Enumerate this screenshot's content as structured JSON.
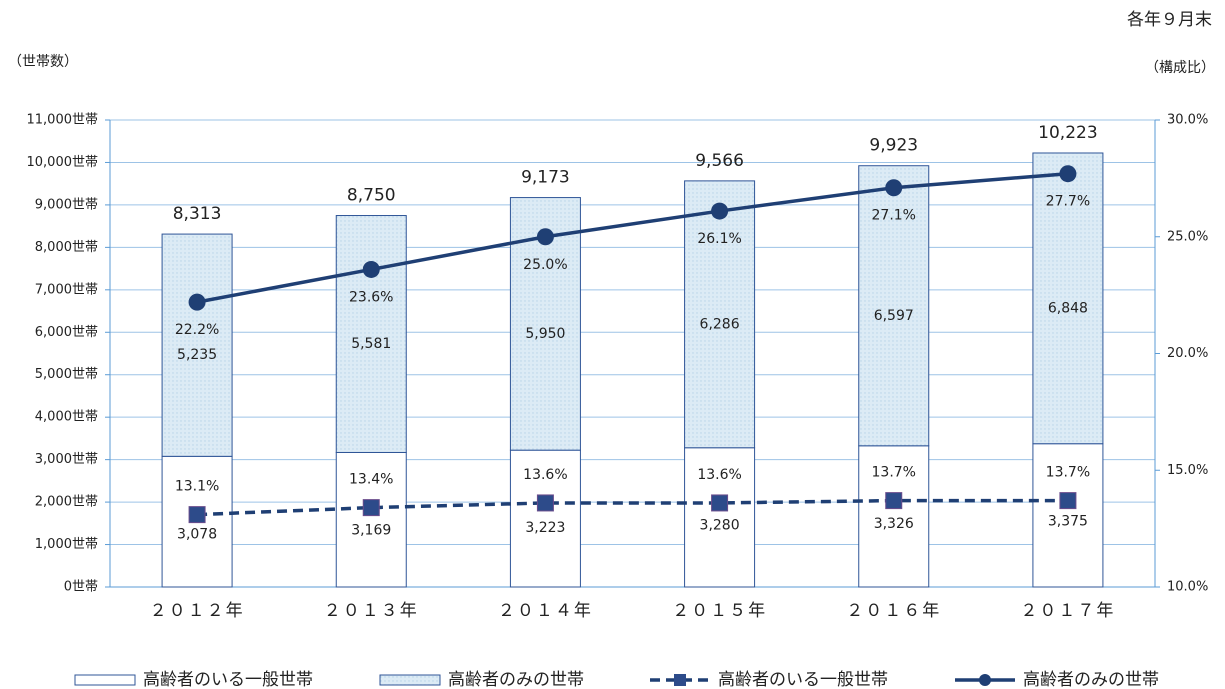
{
  "chart_data": {
    "type": "bar",
    "stacked": true,
    "note": "各年９月末",
    "y_label": "（世帯数）",
    "y2_label": "（構成比）",
    "categories": [
      "２０１２年",
      "２０１３年",
      "２０１４年",
      "２０１５年",
      "２０１６年",
      "２０１７年"
    ],
    "series": [
      {
        "name": "高齢者のいる一般世帯",
        "type": "bar",
        "color": "#ffffff",
        "edge": "#2f5597",
        "values": [
          3078,
          3169,
          3223,
          3280,
          3326,
          3375
        ],
        "value_labels": [
          "3,078",
          "3,169",
          "3,223",
          "3,280",
          "3,326",
          "3,375"
        ]
      },
      {
        "name": "高齢者のみの世帯",
        "type": "bar",
        "color": "#dcebf5",
        "edge": "#2f5597",
        "values": [
          5235,
          5581,
          5950,
          6286,
          6597,
          6848
        ],
        "value_labels": [
          "5,235",
          "5,581",
          "5,950",
          "6,286",
          "6,597",
          "6,848"
        ]
      },
      {
        "name": "高齢者のいる一般世帯",
        "type": "line",
        "axis": "y2",
        "color": "#1f3f74",
        "dashed": true,
        "marker": "square",
        "marker_color": "#2d4b8a",
        "values": [
          13.1,
          13.4,
          13.6,
          13.6,
          13.7,
          13.7
        ],
        "value_labels": [
          "13.1%",
          "13.4%",
          "13.6%",
          "13.6%",
          "13.7%",
          "13.7%"
        ]
      },
      {
        "name": "高齢者のみの世帯",
        "type": "line",
        "axis": "y2",
        "color": "#1f3f74",
        "dashed": false,
        "marker": "circle",
        "marker_color": "#1f3f74",
        "values": [
          22.2,
          23.6,
          25.0,
          26.1,
          27.1,
          27.7
        ],
        "value_labels": [
          "22.2%",
          "23.6%",
          "25.0%",
          "26.1%",
          "27.1%",
          "27.7%"
        ]
      }
    ],
    "totals": {
      "values": [
        8313,
        8750,
        9173,
        9566,
        9923,
        10223
      ],
      "value_labels": [
        "8,313",
        "8,750",
        "9,173",
        "9,566",
        "9,923",
        "10,223"
      ]
    },
    "ylim": [
      0,
      11000
    ],
    "yticks": [
      {
        "value": 0,
        "label": "0世帯"
      },
      {
        "value": 1000,
        "label": "1,000世帯"
      },
      {
        "value": 2000,
        "label": "2,000世帯"
      },
      {
        "value": 3000,
        "label": "3,000世帯"
      },
      {
        "value": 4000,
        "label": "4,000世帯"
      },
      {
        "value": 5000,
        "label": "5,000世帯"
      },
      {
        "value": 6000,
        "label": "6,000世帯"
      },
      {
        "value": 7000,
        "label": "7,000世帯"
      },
      {
        "value": 8000,
        "label": "8,000世帯"
      },
      {
        "value": 9000,
        "label": "9,000世帯"
      },
      {
        "value": 10000,
        "label": "10,000世帯"
      },
      {
        "value": 11000,
        "label": "11,000世帯"
      }
    ],
    "y2lim": [
      10,
      30
    ],
    "y2ticks": [
      {
        "value": 10,
        "label": "10.0%"
      },
      {
        "value": 15,
        "label": "15.0%"
      },
      {
        "value": 20,
        "label": "20.0%"
      },
      {
        "value": 25,
        "label": "25.0%"
      },
      {
        "value": 30,
        "label": "30.0%"
      }
    ],
    "grid": true,
    "legend": "bottom"
  }
}
